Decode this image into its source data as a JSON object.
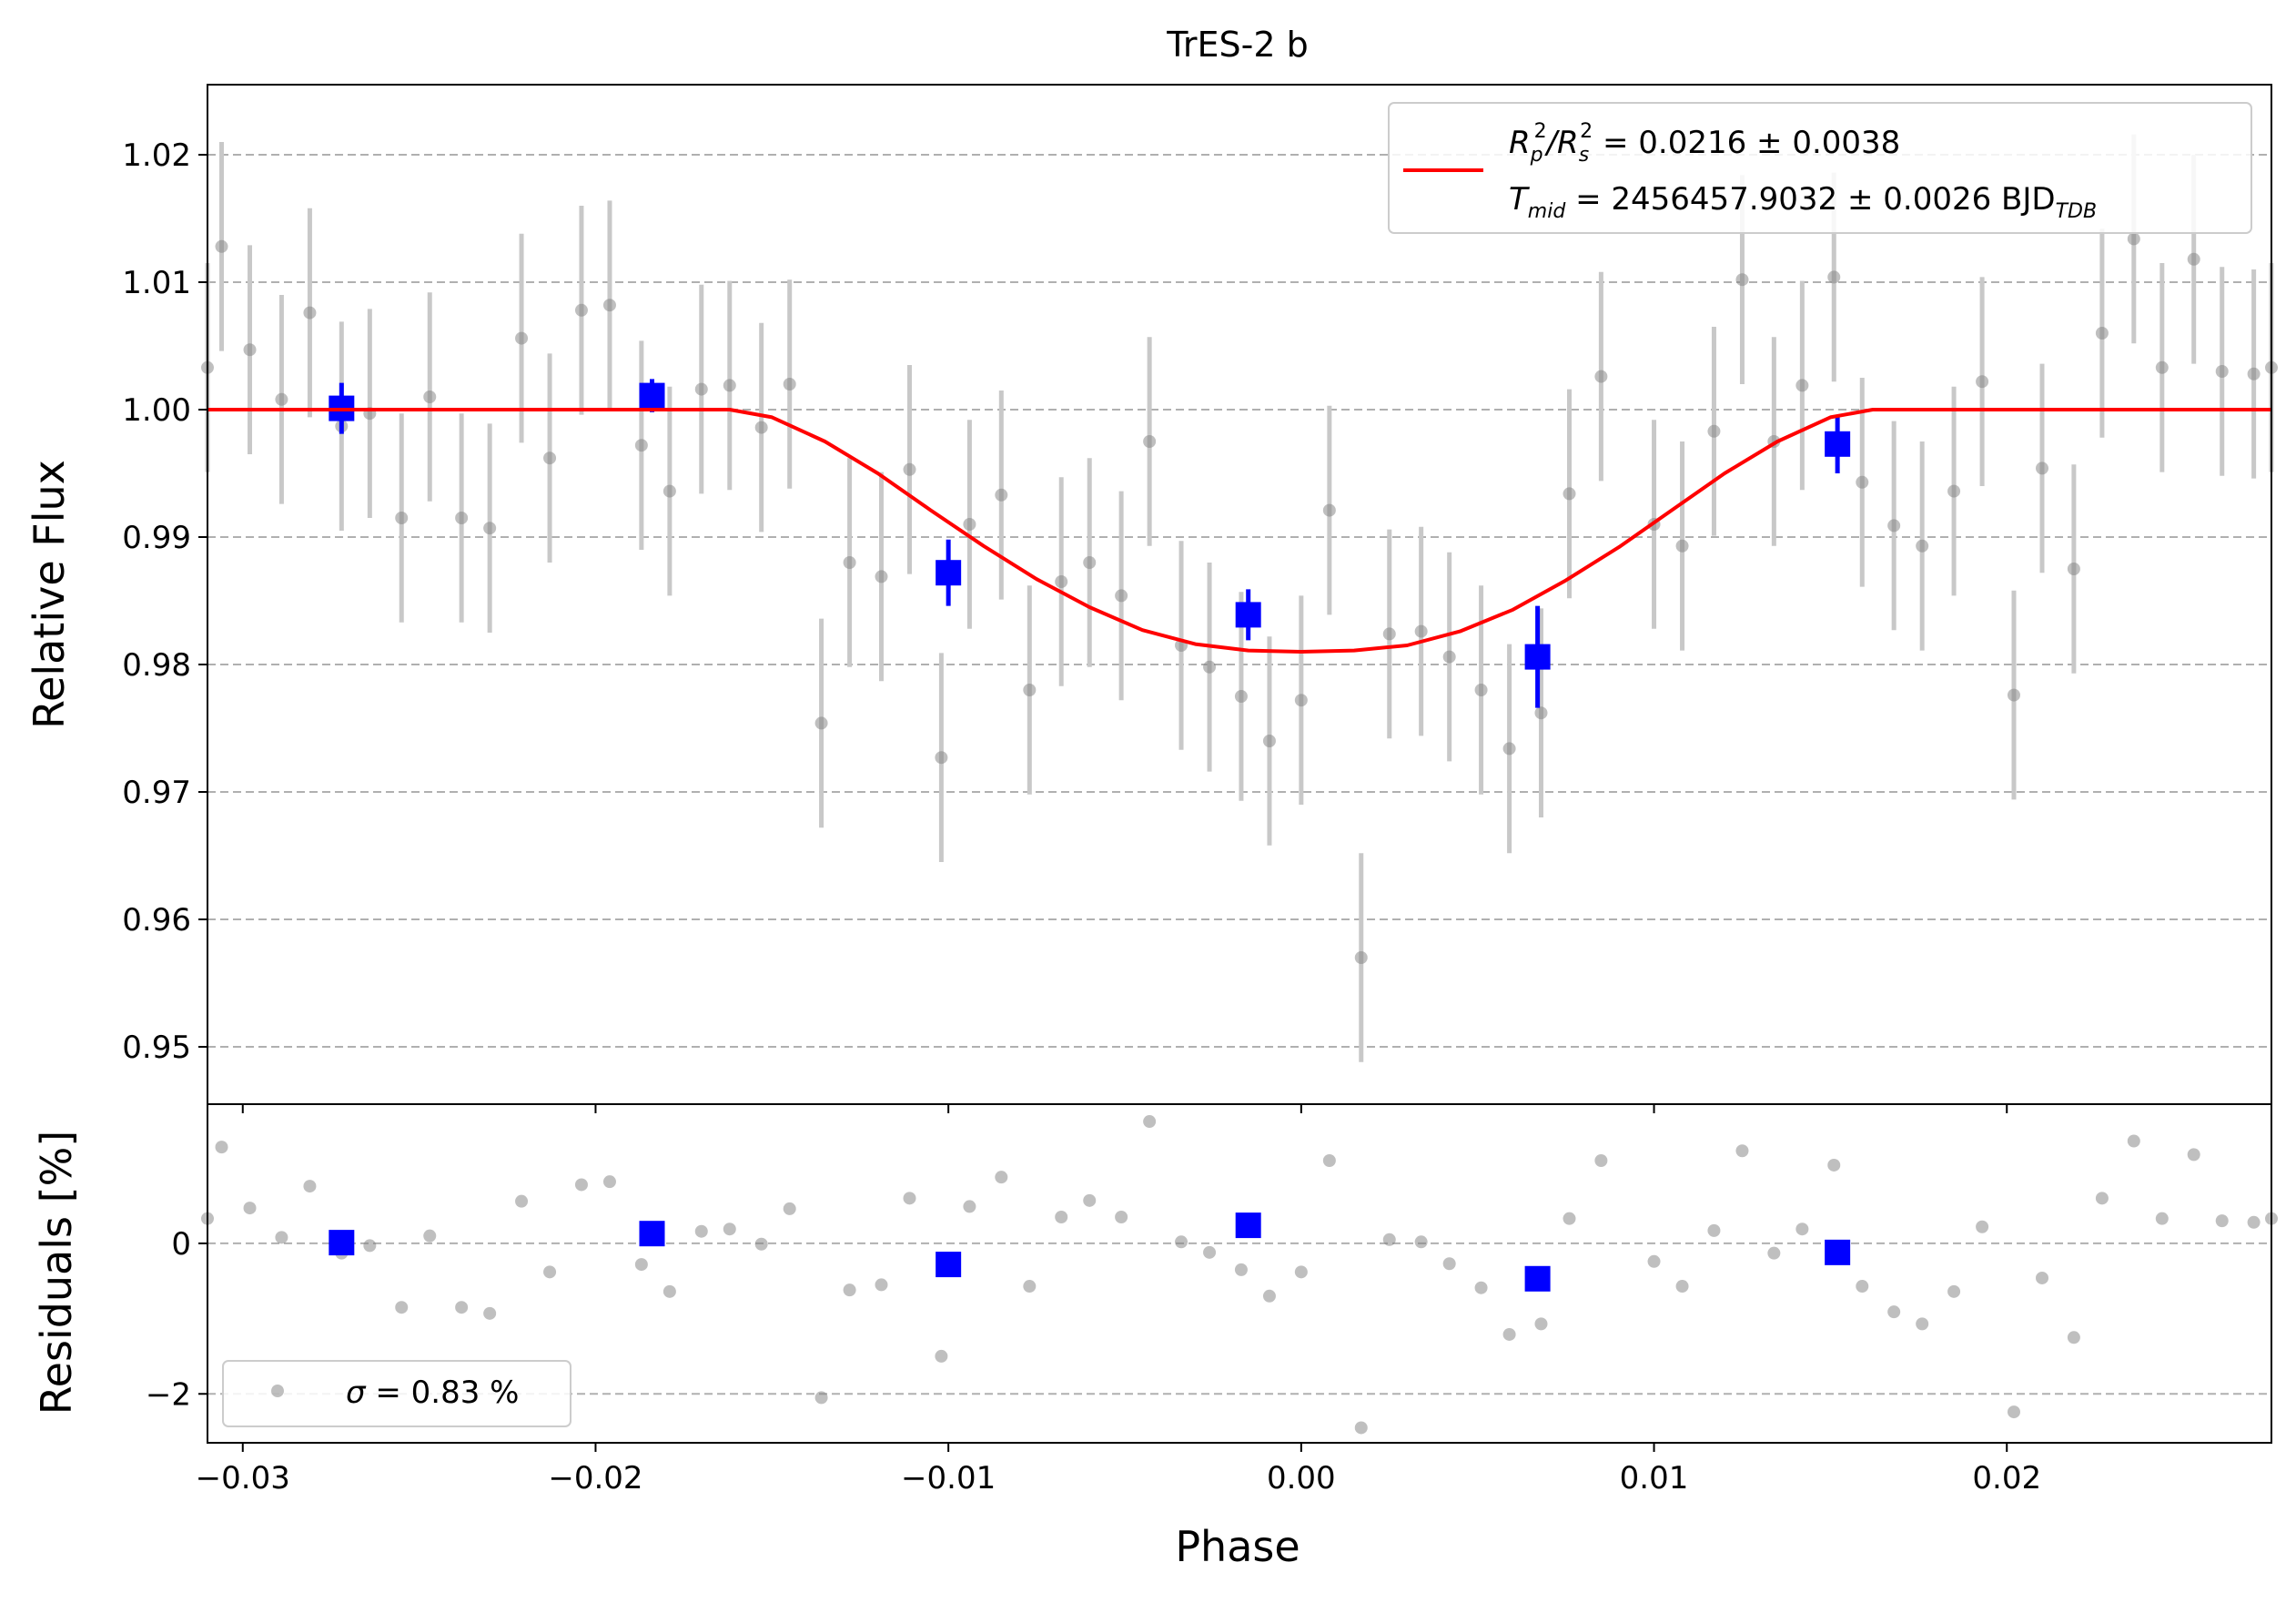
{
  "colors": {
    "raw_points": "#808080",
    "raw_errorbars": "#c8c8c8",
    "binned": "#0000ff",
    "model": "#ff0000",
    "grid": "#b0b0b0"
  },
  "chart_data": [
    {
      "type": "scatter",
      "title": "TrES-2 b",
      "xlabel": "",
      "ylabel": "Relative Flux",
      "xlim": [
        -0.031,
        0.0275
      ],
      "ylim": [
        0.9455,
        1.0255
      ],
      "x_ticks": [
        -0.03,
        -0.02,
        -0.01,
        0.0,
        0.01,
        0.02
      ],
      "y_ticks": [
        0.95,
        0.96,
        0.97,
        0.98,
        0.99,
        1.0,
        1.01,
        1.02
      ],
      "y_tick_labels": [
        "0.95",
        "0.96",
        "0.97",
        "0.98",
        "0.99",
        "1.00",
        "1.01",
        "1.02"
      ],
      "grid": "horizontal dashed",
      "legend": {
        "placement": "top-right",
        "line1": {
          "prefix": "R",
          "sub1": "p",
          "sup1": "2",
          "slash": "/R",
          "sub2": "s",
          "sup2": "2",
          "rest": " = 0.0216 ± 0.0038"
        },
        "line2": {
          "prefix": "T",
          "sub": "mid",
          "rest": " = 2456457.9032 ± 0.0026 BJD",
          "sub2": "TDB"
        }
      },
      "model": {
        "name": "transit model",
        "x": [
          -0.031,
          -0.0162,
          -0.015,
          -0.0135,
          -0.012,
          -0.0105,
          -0.009,
          -0.0075,
          -0.006,
          -0.0045,
          -0.003,
          -0.0015,
          0.0,
          0.0015,
          0.003,
          0.0045,
          0.006,
          0.0075,
          0.009,
          0.0105,
          0.012,
          0.0135,
          0.015,
          0.0162,
          0.0275
        ],
        "y": [
          1.0,
          1.0,
          0.9994,
          0.9975,
          0.995,
          0.9921,
          0.9893,
          0.9867,
          0.9845,
          0.9827,
          0.9816,
          0.9811,
          0.981,
          0.9811,
          0.9815,
          0.9826,
          0.9843,
          0.9866,
          0.9892,
          0.9921,
          0.995,
          0.9975,
          0.9994,
          1.0,
          1.0
        ]
      },
      "raw": {
        "x": [
          -0.031,
          -0.0306,
          -0.0298,
          -0.0289,
          -0.0281,
          -0.0272,
          -0.0264,
          -0.0255,
          -0.0247,
          -0.0238,
          -0.023,
          -0.0221,
          -0.0213,
          -0.0204,
          -0.0196,
          -0.0187,
          -0.0179,
          -0.017,
          -0.0162,
          -0.0153,
          -0.0145,
          -0.0136,
          -0.0128,
          -0.0119,
          -0.0111,
          -0.0102,
          -0.0094,
          -0.0085,
          -0.0077,
          -0.0068,
          -0.006,
          -0.0051,
          -0.0043,
          -0.0034,
          -0.0026,
          -0.0017,
          -0.0009,
          0.0,
          0.0008,
          0.0017,
          0.0025,
          0.0034,
          0.0042,
          0.0051,
          0.0059,
          0.0068,
          0.0076,
          0.0085,
          0.01,
          0.0108,
          0.0117,
          0.0125,
          0.0134,
          0.0142,
          0.0151,
          0.0159,
          0.0168,
          0.0176,
          0.0185,
          0.0193,
          0.0202,
          0.021,
          0.0219,
          0.0227,
          0.0236,
          0.0244,
          0.0253,
          0.0261,
          0.027,
          0.0275
        ],
        "y": [
          1.0033,
          1.0128,
          1.0047,
          1.0008,
          1.0076,
          0.9987,
          0.9997,
          0.9915,
          1.001,
          0.9915,
          0.9907,
          1.0056,
          0.9962,
          1.0078,
          1.0082,
          0.9972,
          0.9936,
          1.0016,
          1.0019,
          0.9986,
          1.002,
          0.9754,
          0.988,
          0.9869,
          0.9953,
          0.9727,
          0.991,
          0.9933,
          0.978,
          0.9865,
          0.988,
          0.9854,
          0.9975,
          0.9815,
          0.9798,
          0.9775,
          0.974,
          0.9772,
          0.9921,
          0.957,
          0.9824,
          0.9826,
          0.9806,
          0.978,
          0.9734,
          0.9762,
          0.9934,
          1.0026,
          0.991,
          0.9893,
          0.9983,
          1.0102,
          0.9975,
          1.0019,
          1.0104,
          0.9943,
          0.9909,
          0.9893,
          0.9936,
          1.0022,
          0.9776,
          0.9954,
          0.9875,
          1.006,
          1.0134,
          1.0033,
          1.0118,
          1.003,
          1.0028,
          1.0033
        ],
        "yerr": 0.0082
      },
      "binned": {
        "name": "binned data",
        "x": [
          -0.0272,
          -0.0184,
          -0.01,
          -0.0015,
          0.0067,
          0.0152
        ],
        "y": [
          1.0001,
          1.0011,
          0.9872,
          0.9839,
          0.9806,
          0.9973
        ],
        "yerr": [
          0.002,
          0.0013,
          0.0026,
          0.002,
          0.004,
          0.0023
        ]
      }
    },
    {
      "type": "scatter",
      "title": "",
      "xlabel": "Phase",
      "ylabel": "Residuals [%]",
      "xlim": [
        -0.031,
        0.0275
      ],
      "ylim": [
        -2.65,
        1.85
      ],
      "x_ticks": [
        -0.03,
        -0.02,
        -0.01,
        0.0,
        0.01,
        0.02
      ],
      "x_tick_labels": [
        "−0.03",
        "−0.02",
        "−0.01",
        "0.00",
        "0.01",
        "0.02"
      ],
      "y_ticks": [
        -2,
        0
      ],
      "y_tick_labels": [
        "−2",
        "0"
      ],
      "grid": "horizontal dashed",
      "legend": {
        "placement": "bottom-left",
        "sigma_symbol": "σ",
        "text": " = 0.83 %"
      },
      "raw": {
        "x": [
          -0.031,
          -0.0306,
          -0.0298,
          -0.0289,
          -0.0281,
          -0.0272,
          -0.0264,
          -0.0255,
          -0.0247,
          -0.0238,
          -0.023,
          -0.0221,
          -0.0213,
          -0.0204,
          -0.0196,
          -0.0187,
          -0.0179,
          -0.017,
          -0.0162,
          -0.0153,
          -0.0145,
          -0.0136,
          -0.0128,
          -0.0119,
          -0.0111,
          -0.0102,
          -0.0094,
          -0.0085,
          -0.0077,
          -0.0068,
          -0.006,
          -0.0051,
          -0.0043,
          -0.0034,
          -0.0026,
          -0.0017,
          -0.0009,
          0.0,
          0.0008,
          0.0017,
          0.0025,
          0.0034,
          0.0042,
          0.0051,
          0.0059,
          0.0068,
          0.0076,
          0.0085,
          0.01,
          0.0108,
          0.0117,
          0.0125,
          0.0134,
          0.0142,
          0.0151,
          0.0159,
          0.0168,
          0.0176,
          0.0185,
          0.0193,
          0.0202,
          0.021,
          0.0219,
          0.0227,
          0.0236,
          0.0244,
          0.0253,
          0.0261,
          0.027,
          0.0275
        ],
        "y": [
          0.33,
          1.28,
          0.47,
          0.08,
          0.76,
          -0.13,
          -0.03,
          -0.85,
          0.1,
          -0.85,
          -0.93,
          0.56,
          -0.38,
          0.78,
          0.82,
          -0.28,
          -0.64,
          0.16,
          0.19,
          -0.01,
          0.46,
          -2.05,
          -0.62,
          -0.55,
          0.6,
          -1.5,
          0.49,
          0.88,
          -0.57,
          0.35,
          0.57,
          0.35,
          1.62,
          0.02,
          -0.12,
          -0.35,
          -0.7,
          -0.38,
          1.1,
          -2.45,
          0.05,
          0.02,
          -0.27,
          -0.59,
          -1.21,
          -1.07,
          0.33,
          1.1,
          -0.24,
          -0.57,
          0.17,
          1.23,
          -0.13,
          0.19,
          1.04,
          -0.57,
          -0.91,
          -1.07,
          -0.64,
          0.22,
          -2.24,
          -0.46,
          -1.25,
          0.6,
          1.36,
          0.33,
          1.18,
          0.3,
          0.28,
          0.33
        ]
      },
      "binned": {
        "x": [
          -0.0272,
          -0.0184,
          -0.01,
          -0.0015,
          0.0067,
          0.0152
        ],
        "y": [
          0.01,
          0.13,
          -0.28,
          0.24,
          -0.47,
          -0.12
        ]
      }
    }
  ]
}
